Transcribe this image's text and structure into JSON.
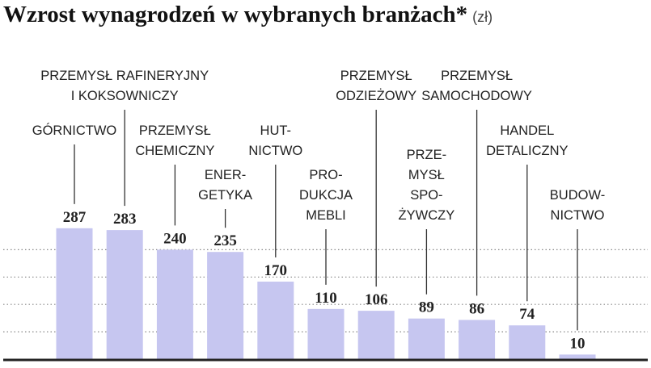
{
  "chart_data": {
    "type": "bar",
    "title": "Wzrost wynagrodzeń w wybranych branżach*",
    "unit": "(zł)",
    "categories": [
      "GÓRNICTWO",
      "PRZEMYSŁ RAFINERYJNY\nI KOKSOWNICZY",
      "PRZEMYSŁ\nCHEMICZNY",
      "ENER-\nGETYKA",
      "HUT-\nNICTWO",
      "PRO-\nDUKCJA\nMEBLI",
      "PRZEMYSŁ\nODZIEŻOWY",
      "PRZE-\nMYSŁ\nSPO-\nŻYWCZY",
      "PRZEMYSŁ\nSAMOCHODOWY",
      "HANDEL\nDETALICZNY",
      "BUDOW-\nNICTWO"
    ],
    "values": [
      287,
      283,
      240,
      235,
      170,
      110,
      106,
      89,
      86,
      74,
      10
    ],
    "color": "#c6c6f0",
    "ylim": [
      0,
      300
    ],
    "yticks": [
      60,
      120,
      180,
      240
    ],
    "grid": true
  }
}
